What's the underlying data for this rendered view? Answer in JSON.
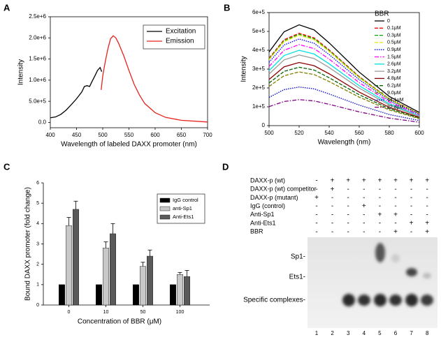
{
  "chart_data": [
    {
      "panel": "A",
      "type": "line",
      "xlabel": "Wavelength  of labeled DAXX promoter  (nm)",
      "ylabel": "Intensity",
      "xlim": [
        400,
        700
      ],
      "xticks": [
        400,
        450,
        500,
        550,
        600,
        650,
        700
      ],
      "ylim": [
        -125000,
        2500000
      ],
      "yticks": [
        {
          "value": 0,
          "label": "0.0"
        },
        {
          "value": 500000,
          "label": "5.0e+5"
        },
        {
          "value": 1000000,
          "label": "1.0e+6"
        },
        {
          "value": 1500000,
          "label": "1.5e+6"
        },
        {
          "value": 2000000,
          "label": "2.0e+6"
        },
        {
          "value": 2500000,
          "label": "2.5e+6"
        }
      ],
      "legend": "upper right",
      "series": [
        {
          "name": "Excitation",
          "color": "#000000",
          "dash": "solid",
          "x": [
            400,
            410,
            420,
            430,
            440,
            450,
            460,
            465,
            470,
            475,
            480,
            485,
            490,
            495,
            498
          ],
          "values": [
            110000,
            130000,
            190000,
            290000,
            420000,
            560000,
            720000,
            850000,
            870000,
            850000,
            980000,
            1100000,
            1230000,
            1300000,
            1200000
          ]
        },
        {
          "name": "Emission",
          "color": "#e8211b",
          "dash": "solid",
          "x": [
            497,
            500,
            505,
            510,
            515,
            520,
            525,
            530,
            540,
            550,
            560,
            570,
            580,
            600,
            620,
            650,
            700
          ],
          "values": [
            770000,
            1100000,
            1450000,
            1750000,
            1980000,
            2050000,
            2000000,
            1880000,
            1580000,
            1230000,
            900000,
            650000,
            450000,
            230000,
            120000,
            50000,
            10000
          ]
        }
      ]
    },
    {
      "panel": "B",
      "type": "line",
      "xlabel": "Wavelength  (nm)",
      "ylabel": "Intensity",
      "legend_title": "BBR",
      "xlim": [
        500,
        600
      ],
      "xticks": [
        500,
        520,
        540,
        560,
        580,
        600
      ],
      "ylim": [
        0,
        600000
      ],
      "yticks": [
        {
          "value": 0,
          "label": "0"
        },
        {
          "value": 100000,
          "label": "1e+5"
        },
        {
          "value": 200000,
          "label": "2e+5"
        },
        {
          "value": 300000,
          "label": "3e+5"
        },
        {
          "value": 400000,
          "label": "4e+5"
        },
        {
          "value": 500000,
          "label": "5e+5"
        },
        {
          "value": 600000,
          "label": "6e+5"
        }
      ],
      "legend": "upper right",
      "x": [
        500,
        510,
        520,
        530,
        540,
        560,
        580,
        600
      ],
      "series": [
        {
          "name": "0",
          "color": "#000000",
          "dash": "solid",
          "values": [
            391000,
            498000,
            535000,
            508000,
            439000,
            284000,
            155000,
            70000
          ]
        },
        {
          "name": "0.1μM",
          "color": "#ff0000",
          "dash": "dashed",
          "values": [
            358000,
            456000,
            490000,
            466000,
            402000,
            260000,
            142000,
            64000
          ]
        },
        {
          "name": "0.3μM",
          "color": "#00b000",
          "dash": "dashed",
          "values": [
            354000,
            451000,
            485000,
            461000,
            398000,
            257000,
            141000,
            63000
          ]
        },
        {
          "name": "0.5μM",
          "color": "#e6e600",
          "dash": "dashed",
          "values": [
            350000,
            446000,
            480000,
            456000,
            394000,
            254000,
            139000,
            62000
          ]
        },
        {
          "name": "0.9μM",
          "color": "#0000ff",
          "dash": "dotted",
          "values": [
            336000,
            428000,
            460000,
            437000,
            377000,
            244000,
            133000,
            60000
          ]
        },
        {
          "name": "1.5μM",
          "color": "#ff00ff",
          "dash": "dashdot",
          "values": [
            314000,
            400000,
            430000,
            409000,
            353000,
            228000,
            125000,
            56000
          ]
        },
        {
          "name": "2.6μM",
          "color": "#00e0e0",
          "dash": "solid",
          "values": [
            292000,
            372000,
            400000,
            380000,
            328000,
            212000,
            116000,
            52000
          ]
        },
        {
          "name": "3.2μM",
          "color": "#9a9a9a",
          "dash": "solid",
          "values": [
            274000,
            349000,
            375000,
            356000,
            308000,
            199000,
            109000,
            49000
          ]
        },
        {
          "name": "4.8μM",
          "color": "#8b0000",
          "dash": "solid",
          "values": [
            245000,
            312000,
            335000,
            318000,
            275000,
            178000,
            97000,
            44000
          ]
        },
        {
          "name": "6.2μM",
          "color": "#006400",
          "dash": "dashed",
          "values": [
            226000,
            288000,
            310000,
            295000,
            254000,
            164000,
            90000,
            40000
          ]
        },
        {
          "name": "9.0μM",
          "color": "#808000",
          "dash": "dashed",
          "values": [
            208000,
            265000,
            285000,
            271000,
            234000,
            151000,
            83000,
            37000
          ]
        },
        {
          "name": "14.1μM",
          "color": "#0000cd",
          "dash": "dotted",
          "values": [
            150000,
            191000,
            205000,
            195000,
            168000,
            109000,
            59000,
            27000
          ]
        },
        {
          "name": "22.8μM",
          "color": "#800080",
          "dash": "dashdot",
          "values": [
            101000,
            128000,
            138000,
            131000,
            113000,
            73000,
            40000,
            18000
          ]
        }
      ]
    },
    {
      "panel": "C",
      "type": "bar",
      "xlabel": "Concentration of BBR (μM)",
      "ylabel": "Bound DAXX promoter (fold change)",
      "categories": [
        "0",
        "10",
        "50",
        "100"
      ],
      "ylim": [
        0,
        6
      ],
      "yticks": [
        0,
        1,
        2,
        3,
        4,
        5,
        6
      ],
      "legend": "upper right",
      "series": [
        {
          "name": "IgG control",
          "color": "#000000",
          "values": [
            1,
            1,
            1,
            1
          ]
        },
        {
          "name": "anti-Sp1",
          "color": "#c8c8c8",
          "values": [
            3.9,
            2.8,
            1.9,
            1.5
          ],
          "errors": [
            0.4,
            0.3,
            0.2,
            0.1
          ]
        },
        {
          "name": "Anti-Ets1",
          "color": "#5a5a5a",
          "values": [
            4.7,
            3.5,
            2.4,
            1.4
          ],
          "errors": [
            0.4,
            0.5,
            0.3,
            0.3
          ]
        }
      ]
    }
  ],
  "gel": {
    "panel": "D",
    "rows": [
      {
        "label": "DAXX-p  (wt)",
        "lanes": [
          "-",
          "+",
          "+",
          "+",
          "+",
          "+",
          "+",
          "+"
        ]
      },
      {
        "label": "DAXX-p  (wt)  competitor",
        "lanes": [
          "-",
          "+",
          "-",
          "-",
          "-",
          "-",
          "-",
          "-"
        ]
      },
      {
        "label": "DAXX-p  (mutant)",
        "lanes": [
          "+",
          "-",
          "-",
          "-",
          "-",
          "-",
          "-",
          "-"
        ]
      },
      {
        "label": "IgG (control)",
        "lanes": [
          "-",
          "-",
          "-",
          "+",
          "-",
          "-",
          "-",
          "-"
        ]
      },
      {
        "label": "Anti-Sp1",
        "lanes": [
          "-",
          "-",
          "-",
          "-",
          "+",
          "+",
          "-",
          "-"
        ]
      },
      {
        "label": "Anti-Ets1",
        "lanes": [
          "-",
          "-",
          "-",
          "-",
          "-",
          "-",
          "+",
          "+"
        ]
      },
      {
        "label": "BBR",
        "lanes": [
          "-",
          "-",
          "-",
          "-",
          "-",
          "+",
          "-",
          "+"
        ]
      }
    ],
    "bands": [
      "Sp1-",
      "Ets1-",
      "Specific complexes-"
    ],
    "lanes": [
      "1",
      "2",
      "3",
      "4",
      "5",
      "6",
      "7",
      "8"
    ]
  }
}
